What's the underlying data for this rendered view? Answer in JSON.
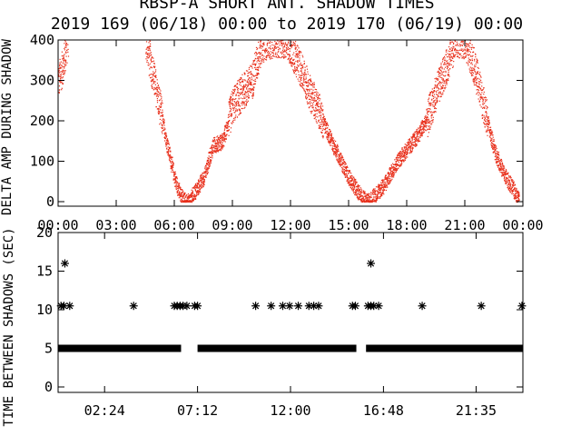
{
  "title": "RBSP-A SHORT ANT. SHADOW TIMES",
  "subtitle": "2019 169 (06/18) 00:00 to 2019 170 (06/19) 00:00",
  "colors": {
    "background": "#ffffff",
    "axes": "#000000",
    "top_points": "#e8301c",
    "bottom_points": "#000000"
  },
  "chart_data": [
    {
      "type": "scatter",
      "ylabel": "DELTA AMP DURING SHADOW",
      "xlim_hours": [
        0,
        24
      ],
      "ylim": [
        0,
        400
      ],
      "grid": false,
      "xticks": [
        "00:00",
        "03:00",
        "06:00",
        "09:00",
        "12:00",
        "15:00",
        "18:00",
        "21:00",
        "00:00"
      ],
      "xtick_hours": [
        0,
        3,
        6,
        9,
        12,
        15,
        18,
        21,
        24
      ],
      "yticks": [
        0,
        100,
        200,
        300,
        400
      ],
      "marker": "dot",
      "series": [
        {
          "envelope_x_hours": [
            0.0,
            0.2,
            0.5,
            4.5,
            5.0,
            5.5,
            6.0,
            6.3,
            6.7,
            7.0,
            7.5,
            8.0,
            8.5,
            9.0,
            9.5,
            10.0,
            10.5,
            11.0,
            11.3,
            11.6,
            11.8,
            12.0,
            12.5,
            13.0,
            13.5,
            14.0,
            14.5,
            15.0,
            15.4,
            15.7,
            16.0,
            16.2,
            16.8,
            17.5,
            18.0,
            18.5,
            19.0,
            19.5,
            20.0,
            20.5,
            21.0,
            21.5,
            22.0,
            22.5,
            23.0,
            23.5,
            23.8
          ],
          "envelope_y": [
            300,
            330,
            400,
            400,
            290,
            170,
            60,
            15,
            0,
            20,
            60,
            140,
            150,
            240,
            270,
            300,
            390,
            400,
            400,
            400,
            400,
            380,
            330,
            270,
            220,
            160,
            110,
            60,
            30,
            10,
            0,
            10,
            40,
            100,
            130,
            160,
            200,
            270,
            330,
            400,
            400,
            330,
            230,
            130,
            70,
            30,
            5
          ]
        }
      ]
    },
    {
      "type": "scatter",
      "ylabel": "TIME BETWEEN SHADOWS (SEC)",
      "xlim_hours": [
        0,
        24
      ],
      "ylim": [
        0,
        20
      ],
      "grid": false,
      "xticks": [
        "02:24",
        "07:12",
        "12:00",
        "16:48",
        "21:35"
      ],
      "xtick_hours": [
        2.4,
        7.2,
        12.0,
        16.8,
        21.5833
      ],
      "yticks": [
        0,
        5,
        10,
        15,
        20
      ],
      "marker": "asterisk",
      "series": [
        {
          "baseline_value": 5,
          "baseline_ranges_hours": [
            [
              0.0,
              6.35
            ],
            [
              7.2,
              15.4
            ],
            [
              15.9,
              24.0
            ]
          ],
          "x_hours": [
            0.15,
            0.3,
            0.6,
            3.9,
            6.0,
            6.15,
            6.3,
            6.45,
            6.65,
            7.05,
            7.2,
            10.2,
            11.0,
            11.6,
            11.95,
            12.4,
            12.95,
            13.2,
            13.45,
            15.2,
            15.35,
            16.0,
            16.15,
            16.3,
            16.55,
            18.8,
            21.85,
            23.95,
            0.35,
            16.15
          ],
          "y": [
            10.5,
            10.5,
            10.5,
            10.5,
            10.5,
            10.5,
            10.5,
            10.5,
            10.5,
            10.5,
            10.5,
            10.5,
            10.5,
            10.5,
            10.5,
            10.5,
            10.5,
            10.5,
            10.5,
            10.5,
            10.5,
            10.5,
            10.5,
            10.5,
            10.5,
            10.5,
            10.5,
            10.5,
            16.0,
            16.0
          ]
        }
      ]
    }
  ]
}
